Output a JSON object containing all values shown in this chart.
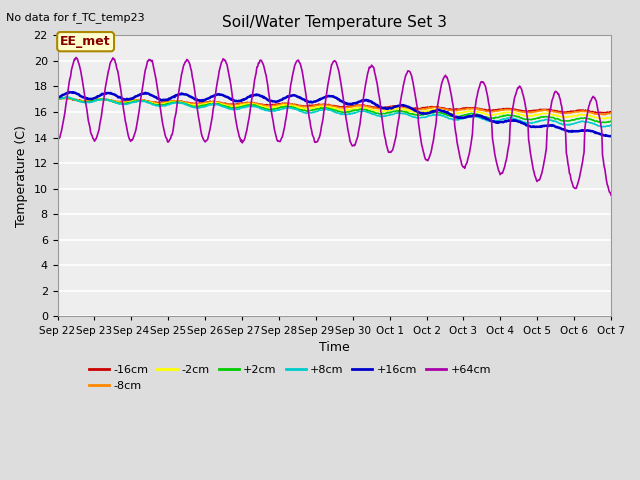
{
  "title": "Soil/Water Temperature Set 3",
  "subtitle": "No data for f_TC_temp23",
  "xlabel": "Time",
  "ylabel": "Temperature (C)",
  "annotation": "EE_met",
  "ylim": [
    0,
    22
  ],
  "yticks": [
    0,
    2,
    4,
    6,
    8,
    10,
    12,
    14,
    16,
    18,
    20,
    22
  ],
  "xtick_labels": [
    "Sep 22",
    "Sep 23",
    "Sep 24",
    "Sep 25",
    "Sep 26",
    "Sep 27",
    "Sep 28",
    "Sep 29",
    "Sep 30",
    "Oct 1",
    "Oct 2",
    "Oct 3",
    "Oct 4",
    "Oct 5",
    "Oct 6",
    "Oct 7"
  ],
  "series_order": [
    "-16cm",
    "-8cm",
    "-2cm",
    "+2cm",
    "+8cm",
    "+16cm",
    "+64cm"
  ],
  "series": {
    "-16cm": {
      "color": "#cc0000"
    },
    "-8cm": {
      "color": "#ff8800"
    },
    "-2cm": {
      "color": "#ffff00"
    },
    "+2cm": {
      "color": "#00cc00"
    },
    "+8cm": {
      "color": "#00cccc"
    },
    "+16cm": {
      "color": "#0000cc"
    },
    "+64cm": {
      "color": "#aa00aa"
    }
  },
  "bg_color": "#dddddd",
  "plot_bg_color": "#eeeeee",
  "grid_color": "#ffffff",
  "points_per_day": 48,
  "n_days": 15
}
